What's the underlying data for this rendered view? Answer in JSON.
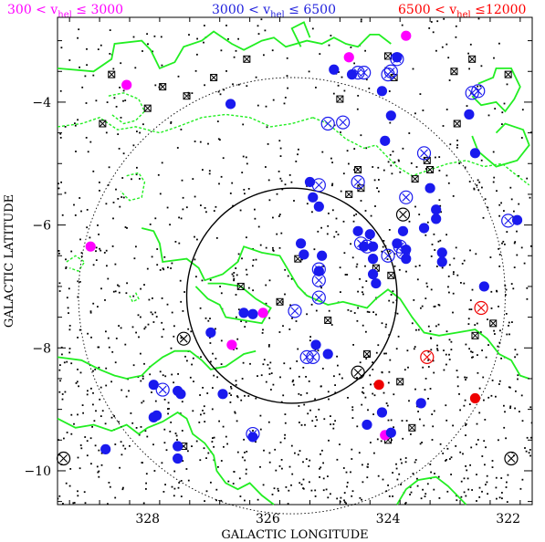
{
  "chart_data": {
    "type": "scatter",
    "xlabel": "GALACTIC LONGITUDE",
    "ylabel": "GALACTIC LATITUDE",
    "xlim": [
      329.5,
      321.6
    ],
    "ylim": [
      -10.55,
      -2.62
    ],
    "x_reversed": true,
    "xticks": [
      328,
      326,
      324,
      322
    ],
    "yticks": [
      -4,
      -6,
      -8,
      -10
    ],
    "x_tick_labels": [
      "328",
      "326",
      "324",
      "322"
    ],
    "y_tick_labels": [
      "−4",
      "−6",
      "−8",
      "−10"
    ],
    "legend": [
      {
        "parts": [
          "300",
          "<",
          "v",
          "hel",
          "≤",
          "3000"
        ],
        "color": "#ff00ff"
      },
      {
        "parts": [
          "3000",
          "<",
          "v",
          "hel",
          "≤",
          "6500"
        ],
        "color": "#2020dd"
      },
      {
        "parts": [
          "6500",
          "<",
          "v",
          "hel",
          "≤12000"
        ],
        "color": "#ff0000"
      }
    ],
    "colors": {
      "magenta": "#ff00ff",
      "blue": "#1a1aee",
      "red": "#ee0000",
      "contour": "#22ee22",
      "marker": "#000000"
    },
    "circles": [
      {
        "center": [
          325.6,
          -7.15
        ],
        "radius_deg": 1.75,
        "style": "solid"
      },
      {
        "center": [
          325.6,
          -7.15
        ],
        "radius_deg": 3.55,
        "style": "dotted"
      }
    ],
    "series": [
      {
        "name": "300 < v_hel ≤ 3000",
        "color": "#ff00ff",
        "points": [
          [
            328.35,
            -3.72
          ],
          [
            328.95,
            -6.35
          ],
          [
            326.08,
            -7.43
          ],
          [
            326.6,
            -7.95
          ],
          [
            324.65,
            -3.27
          ],
          [
            323.7,
            -2.92
          ],
          [
            324.05,
            -9.42
          ]
        ]
      },
      {
        "name": "3000 < v_hel ≤ 6500",
        "color": "#1a1aee",
        "points": [
          [
            328.7,
            -9.65
          ],
          [
            327.9,
            -9.13
          ],
          [
            327.85,
            -9.1
          ],
          [
            327.9,
            -8.6
          ],
          [
            327.45,
            -8.75
          ],
          [
            327.5,
            -8.7
          ],
          [
            327.5,
            -9.6
          ],
          [
            327.5,
            -9.8
          ],
          [
            326.95,
            -7.75
          ],
          [
            326.75,
            -8.75
          ],
          [
            326.62,
            -4.03
          ],
          [
            326.4,
            -7.43
          ],
          [
            326.25,
            -7.45
          ],
          [
            326.25,
            -9.45
          ],
          [
            325.45,
            -6.3
          ],
          [
            325.4,
            -6.48
          ],
          [
            325.3,
            -5.3
          ],
          [
            325.25,
            -5.55
          ],
          [
            325.15,
            -5.7
          ],
          [
            325.1,
            -6.5
          ],
          [
            325.15,
            -6.75
          ],
          [
            325.2,
            -7.95
          ],
          [
            325.0,
            -8.1
          ],
          [
            324.9,
            -3.47
          ],
          [
            324.6,
            -3.55
          ],
          [
            324.5,
            -6.1
          ],
          [
            324.4,
            -6.35
          ],
          [
            324.3,
            -6.15
          ],
          [
            324.35,
            -9.25
          ],
          [
            324.25,
            -6.35
          ],
          [
            324.25,
            -6.55
          ],
          [
            324.25,
            -6.8
          ],
          [
            324.2,
            -6.95
          ],
          [
            324.1,
            -3.82
          ],
          [
            324.1,
            -9.05
          ],
          [
            324.05,
            -4.63
          ],
          [
            323.95,
            -4.22
          ],
          [
            323.95,
            -9.38
          ],
          [
            323.85,
            -3.27
          ],
          [
            323.85,
            -6.3
          ],
          [
            323.75,
            -6.1
          ],
          [
            323.7,
            -6.4
          ],
          [
            323.7,
            -6.55
          ],
          [
            323.45,
            -8.9
          ],
          [
            323.4,
            -6.05
          ],
          [
            323.2,
            -5.75
          ],
          [
            323.2,
            -5.9
          ],
          [
            323.1,
            -6.45
          ],
          [
            323.1,
            -6.6
          ],
          [
            323.3,
            -5.4
          ],
          [
            322.65,
            -4.2
          ],
          [
            322.55,
            -4.83
          ],
          [
            322.4,
            -7.0
          ],
          [
            321.85,
            -5.92
          ]
        ]
      },
      {
        "name": "6500 < v_hel ≤12000",
        "color": "#ee0000",
        "points": [
          [
            324.15,
            -8.6
          ],
          [
            322.55,
            -8.82
          ]
        ]
      }
    ],
    "circled_blue": [
      [
        327.75,
        -8.68
      ],
      [
        326.25,
        -9.4
      ],
      [
        325.55,
        -7.4
      ],
      [
        325.35,
        -8.15
      ],
      [
        325.25,
        -8.15
      ],
      [
        325.15,
        -6.72
      ],
      [
        325.15,
        -6.9
      ],
      [
        325.15,
        -7.18
      ],
      [
        325.15,
        -5.35
      ],
      [
        325.0,
        -4.35
      ],
      [
        324.75,
        -4.33
      ],
      [
        324.5,
        -3.52
      ],
      [
        324.4,
        -3.52
      ],
      [
        324.5,
        -5.3
      ],
      [
        324.45,
        -6.3
      ],
      [
        324.35,
        -6.35
      ],
      [
        324.0,
        -3.55
      ],
      [
        323.95,
        -3.5
      ],
      [
        323.85,
        -3.3
      ],
      [
        323.75,
        -6.45
      ],
      [
        323.8,
        -6.35
      ],
      [
        323.7,
        -5.55
      ],
      [
        322.6,
        -3.85
      ],
      [
        322.5,
        -3.82
      ],
      [
        322.0,
        -5.93
      ],
      [
        323.4,
        -4.83
      ],
      [
        324.0,
        -6.5
      ]
    ],
    "circled_red": [
      [
        322.45,
        -7.35
      ],
      [
        323.35,
        -8.15
      ]
    ],
    "circled_black": [
      [
        327.4,
        -7.85
      ],
      [
        329.4,
        -9.8
      ],
      [
        324.5,
        -8.4
      ],
      [
        323.75,
        -5.83
      ],
      [
        321.95,
        -9.8
      ]
    ],
    "crossbox": [
      [
        328.6,
        -3.55
      ],
      [
        328.0,
        -4.1
      ],
      [
        327.75,
        -3.75
      ],
      [
        327.35,
        -3.9
      ],
      [
        327.4,
        -9.6
      ],
      [
        326.9,
        -3.6
      ],
      [
        326.45,
        -7.0
      ],
      [
        325.8,
        -7.25
      ],
      [
        325.5,
        -6.55
      ],
      [
        325.0,
        -7.55
      ],
      [
        324.8,
        -3.95
      ],
      [
        324.65,
        -5.5
      ],
      [
        324.5,
        -5.1
      ],
      [
        324.45,
        -5.4
      ],
      [
        324.35,
        -8.1
      ],
      [
        324.2,
        -6.7
      ],
      [
        324.0,
        -3.25
      ],
      [
        323.95,
        -6.82
      ],
      [
        323.8,
        -8.55
      ],
      [
        323.6,
        -9.3
      ],
      [
        323.55,
        -5.25
      ],
      [
        323.35,
        -4.95
      ],
      [
        323.3,
        -5.1
      ],
      [
        322.9,
        -3.5
      ],
      [
        322.85,
        -4.35
      ],
      [
        322.6,
        -3.3
      ],
      [
        322.55,
        -7.8
      ],
      [
        322.25,
        -7.6
      ],
      [
        322.0,
        -3.55
      ],
      [
        323.9,
        -3.6
      ],
      [
        328.75,
        -4.35
      ],
      [
        326.35,
        -3.3
      ],
      [
        324.0,
        -9.5
      ]
    ],
    "contours_solid": [
      [
        [
          329.5,
          -3.45
        ],
        [
          328.9,
          -3.5
        ],
        [
          328.6,
          -3.3
        ],
        [
          328.55,
          -3.05
        ],
        [
          328.1,
          -3.0
        ],
        [
          327.95,
          -3.15
        ],
        [
          327.8,
          -3.45
        ],
        [
          327.55,
          -3.35
        ],
        [
          327.4,
          -3.1
        ],
        [
          327.1,
          -3.0
        ],
        [
          326.9,
          -2.85
        ],
        [
          326.6,
          -3.05
        ],
        [
          326.4,
          -3.15
        ],
        [
          326.1,
          -3.0
        ],
        [
          325.9,
          -2.95
        ],
        [
          325.7,
          -3.1
        ],
        [
          325.35,
          -3.0
        ],
        [
          325.1,
          -3.05
        ],
        [
          324.9,
          -2.95
        ],
        [
          324.7,
          -3.05
        ],
        [
          324.5,
          -3.1
        ],
        [
          324.3,
          -2.9
        ],
        [
          324.15,
          -2.9
        ],
        [
          323.95,
          -3.05
        ]
      ],
      [
        [
          325.3,
          -2.95
        ],
        [
          325.4,
          -2.7
        ],
        [
          325.6,
          -2.8
        ],
        [
          325.45,
          -3.1
        ]
      ],
      [
        [
          322.5,
          -3.7
        ],
        [
          322.25,
          -3.6
        ],
        [
          322.2,
          -3.45
        ],
        [
          321.95,
          -3.45
        ],
        [
          321.8,
          -3.75
        ],
        [
          321.9,
          -3.95
        ],
        [
          322.05,
          -4.15
        ],
        [
          322.2,
          -4.0
        ],
        [
          322.45,
          -4.05
        ],
        [
          322.6,
          -3.9
        ]
      ],
      [
        [
          322.2,
          -4.5
        ],
        [
          322.05,
          -4.35
        ],
        [
          321.75,
          -4.45
        ],
        [
          321.65,
          -4.7
        ],
        [
          321.85,
          -4.95
        ],
        [
          322.2,
          -5.05
        ],
        [
          322.5,
          -4.8
        ],
        [
          322.6,
          -4.55
        ]
      ],
      [
        [
          328.1,
          -6.05
        ],
        [
          327.9,
          -6.1
        ],
        [
          327.8,
          -6.3
        ],
        [
          327.75,
          -6.6
        ],
        [
          327.35,
          -6.55
        ],
        [
          327.15,
          -6.7
        ],
        [
          327.05,
          -6.9
        ],
        [
          326.75,
          -6.8
        ],
        [
          326.5,
          -6.6
        ],
        [
          326.4,
          -6.35
        ],
        [
          326.1,
          -6.45
        ],
        [
          325.8,
          -6.5
        ],
        [
          325.65,
          -6.75
        ],
        [
          325.5,
          -7.0
        ],
        [
          325.35,
          -7.15
        ],
        [
          325.0,
          -7.3
        ],
        [
          324.75,
          -7.25
        ],
        [
          324.55,
          -7.3
        ],
        [
          324.35,
          -7.35
        ],
        [
          324.2,
          -7.2
        ],
        [
          324.0,
          -7.05
        ],
        [
          323.8,
          -7.2
        ],
        [
          323.6,
          -7.5
        ],
        [
          323.4,
          -7.75
        ],
        [
          323.15,
          -7.8
        ],
        [
          322.85,
          -7.75
        ],
        [
          322.55,
          -7.7
        ],
        [
          322.35,
          -7.85
        ],
        [
          322.15,
          -8.1
        ],
        [
          321.95,
          -8.2
        ],
        [
          321.8,
          -8.45
        ],
        [
          321.65,
          -8.5
        ]
      ],
      [
        [
          327.2,
          -7.0
        ],
        [
          327.0,
          -7.2
        ],
        [
          326.8,
          -7.3
        ],
        [
          326.7,
          -7.5
        ],
        [
          326.4,
          -7.55
        ],
        [
          326.1,
          -7.6
        ],
        [
          325.95,
          -7.35
        ],
        [
          326.2,
          -7.2
        ],
        [
          326.45,
          -7.0
        ],
        [
          326.75,
          -6.95
        ],
        [
          327.0,
          -6.95
        ]
      ],
      [
        [
          329.5,
          -8.15
        ],
        [
          329.1,
          -8.2
        ],
        [
          328.8,
          -8.35
        ],
        [
          328.55,
          -8.45
        ],
        [
          328.35,
          -8.5
        ],
        [
          328.1,
          -8.45
        ],
        [
          327.95,
          -8.3
        ],
        [
          327.75,
          -8.15
        ],
        [
          327.55,
          -8.05
        ],
        [
          327.3,
          -8.05
        ],
        [
          327.1,
          -8.2
        ],
        [
          326.95,
          -8.35
        ],
        [
          326.7,
          -8.3
        ],
        [
          326.4,
          -8.1
        ],
        [
          326.2,
          -8.05
        ]
      ],
      [
        [
          329.5,
          -9.15
        ],
        [
          329.2,
          -9.3
        ],
        [
          328.9,
          -9.25
        ],
        [
          328.6,
          -9.35
        ],
        [
          328.35,
          -9.25
        ],
        [
          328.15,
          -9.4
        ],
        [
          328.0,
          -9.3
        ],
        [
          327.75,
          -9.2
        ],
        [
          327.5,
          -9.05
        ],
        [
          327.35,
          -9.15
        ],
        [
          327.25,
          -9.4
        ],
        [
          327.05,
          -9.55
        ],
        [
          326.9,
          -9.75
        ],
        [
          326.85,
          -10.0
        ],
        [
          326.7,
          -10.2
        ],
        [
          326.5,
          -10.3
        ],
        [
          326.3,
          -10.2
        ],
        [
          326.1,
          -10.4
        ],
        [
          325.9,
          -10.55
        ]
      ],
      [
        [
          323.85,
          -10.55
        ],
        [
          323.7,
          -10.3
        ],
        [
          323.5,
          -10.15
        ],
        [
          323.2,
          -10.1
        ],
        [
          323.0,
          -10.25
        ],
        [
          322.8,
          -10.45
        ],
        [
          322.7,
          -10.55
        ]
      ]
    ],
    "contours_dotted": [
      [
        [
          328.65,
          -3.9
        ],
        [
          328.4,
          -3.85
        ],
        [
          328.15,
          -3.95
        ],
        [
          328.05,
          -4.15
        ],
        [
          328.2,
          -4.3
        ],
        [
          328.4,
          -4.35
        ],
        [
          328.6,
          -4.2
        ]
      ],
      [
        [
          329.5,
          -4.4
        ],
        [
          329.1,
          -4.35
        ],
        [
          328.8,
          -4.25
        ],
        [
          328.5,
          -4.45
        ],
        [
          328.2,
          -4.4
        ],
        [
          327.8,
          -4.5
        ],
        [
          327.5,
          -4.4
        ],
        [
          327.1,
          -4.25
        ],
        [
          326.7,
          -4.2
        ],
        [
          326.3,
          -4.25
        ],
        [
          325.95,
          -4.4
        ],
        [
          325.6,
          -4.35
        ],
        [
          325.25,
          -4.25
        ]
      ],
      [
        [
          325.25,
          -4.25
        ],
        [
          325.0,
          -4.35
        ],
        [
          324.7,
          -4.6
        ],
        [
          324.4,
          -4.75
        ],
        [
          324.2,
          -4.7
        ],
        [
          324.05,
          -4.85
        ],
        [
          323.85,
          -5.05
        ],
        [
          323.6,
          -5.2
        ],
        [
          323.3,
          -5.1
        ],
        [
          323.0,
          -5.0
        ],
        [
          322.7,
          -4.95
        ],
        [
          322.4,
          -5.05
        ],
        [
          322.1,
          -5.0
        ],
        [
          321.85,
          -5.2
        ],
        [
          321.65,
          -5.35
        ]
      ],
      [
        [
          328.35,
          -5.2
        ],
        [
          328.15,
          -5.15
        ],
        [
          328.05,
          -5.3
        ],
        [
          328.1,
          -5.55
        ],
        [
          328.3,
          -5.6
        ],
        [
          328.45,
          -5.45
        ]
      ],
      [
        [
          329.35,
          -6.6
        ],
        [
          329.2,
          -6.5
        ],
        [
          329.05,
          -6.6
        ],
        [
          329.15,
          -6.75
        ],
        [
          329.3,
          -6.7
        ]
      ],
      [
        [
          328.2,
          -7.1
        ],
        [
          328.15,
          -7.2
        ],
        [
          328.25,
          -7.25
        ],
        [
          328.3,
          -7.15
        ]
      ]
    ],
    "field_count": 1400
  }
}
